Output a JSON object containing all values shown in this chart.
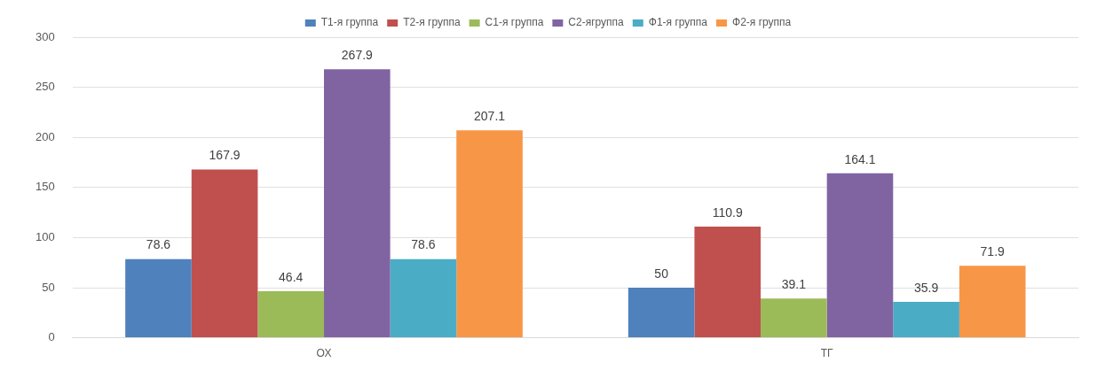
{
  "chart_data": {
    "type": "bar",
    "categories": [
      "ОХ",
      "ТГ"
    ],
    "series": [
      {
        "name": "Т1-я группа",
        "color": "#4f81bd",
        "values": [
          78.6,
          50
        ]
      },
      {
        "name": "Т2-я группа",
        "color": "#c0504d",
        "values": [
          167.9,
          110.9
        ]
      },
      {
        "name": "С1-я группа",
        "color": "#9bbb59",
        "values": [
          46.4,
          39.1
        ]
      },
      {
        "name": "С2-ягруппа",
        "color": "#8064a2",
        "values": [
          267.9,
          164.1
        ]
      },
      {
        "name": "Ф1-я группа",
        "color": "#4bacc6",
        "values": [
          78.6,
          35.9
        ]
      },
      {
        "name": "Ф2-я группа",
        "color": "#f79646",
        "values": [
          207.1,
          71.9
        ]
      }
    ],
    "ylim": [
      0,
      300
    ],
    "yticks": [
      0,
      50,
      100,
      150,
      200,
      250,
      300
    ],
    "grid": "y",
    "legend": "top",
    "data_labels": true
  }
}
